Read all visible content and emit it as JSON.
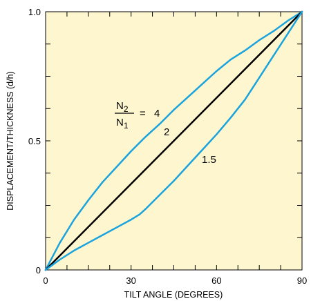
{
  "chart_data": {
    "type": "line",
    "xlabel": "TILT ANGLE (DEGREES)",
    "ylabel": "DISPLACEMENT/THICKNESS (d/h)",
    "xlim": [
      0,
      90
    ],
    "ylim": [
      0,
      1.0
    ],
    "xticks": [
      0,
      30,
      60,
      90
    ],
    "yticks": [
      0,
      0.5,
      1.0
    ],
    "xtick_labels": [
      "0",
      "30",
      "60",
      "90"
    ],
    "ytick_labels": [
      "0",
      "0.5",
      "1.0"
    ],
    "grid": false,
    "plot_background": "#fdf6cf",
    "series": [
      {
        "label": "4",
        "color": "#1aa3dd",
        "x": [
          0,
          5,
          10,
          15,
          20,
          25,
          30,
          35,
          40,
          45,
          50,
          55,
          60,
          65,
          70,
          75,
          80,
          85,
          90
        ],
        "y": [
          0,
          0.105,
          0.195,
          0.27,
          0.34,
          0.4,
          0.46,
          0.515,
          0.565,
          0.62,
          0.67,
          0.72,
          0.77,
          0.815,
          0.85,
          0.89,
          0.925,
          0.965,
          1.0
        ]
      },
      {
        "label": "2",
        "color": "#000000",
        "x": [
          0,
          90
        ],
        "y": [
          0,
          1.0
        ]
      },
      {
        "label": "1.5",
        "color": "#1aa3dd",
        "x": [
          0,
          5,
          10,
          15,
          20,
          25,
          30,
          33,
          35,
          40,
          45,
          50,
          55,
          60,
          65,
          70,
          75,
          80,
          85,
          90
        ],
        "y": [
          0,
          0.04,
          0.075,
          0.105,
          0.135,
          0.165,
          0.195,
          0.215,
          0.235,
          0.29,
          0.345,
          0.405,
          0.465,
          0.525,
          0.59,
          0.66,
          0.745,
          0.83,
          0.915,
          1.0
        ]
      }
    ],
    "annotations": {
      "ratio_numerator": "N",
      "ratio_numerator_sub": "2",
      "ratio_denominator": "N",
      "ratio_denominator_sub": "1",
      "equals": "=",
      "label_4": "4",
      "label_2": "2",
      "label_1_5": "1.5"
    }
  }
}
